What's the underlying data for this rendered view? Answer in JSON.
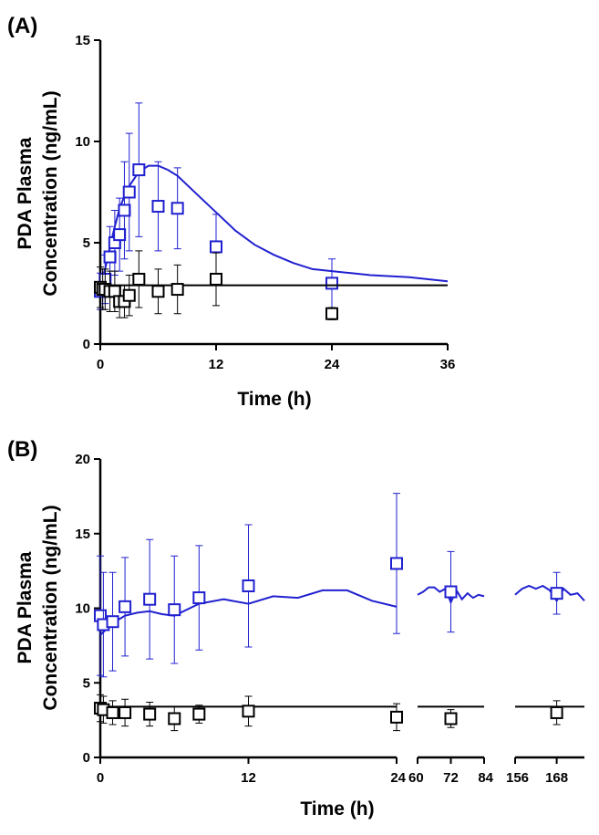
{
  "colors": {
    "blue": "#2020d0",
    "black": "#000000"
  },
  "chart_data": [
    {
      "type": "scatter",
      "panel_label": "(A)",
      "xlabel": "Time (h)",
      "ylabel_lines": [
        "PDA Plasma",
        "Concentration (ng/mL)"
      ],
      "xlim": [
        0,
        36
      ],
      "ylim": [
        0,
        15
      ],
      "x_ticks": [
        0,
        12,
        24,
        36
      ],
      "y_ticks": [
        0,
        5,
        10,
        15
      ],
      "series": [
        {
          "color": "blue",
          "x": [
            0,
            0.25,
            0.5,
            1,
            1.5,
            2,
            2.5,
            3,
            4,
            6,
            8,
            12,
            24
          ],
          "y": [
            2.6,
            2.7,
            3.2,
            4.3,
            5.0,
            5.4,
            6.6,
            7.5,
            8.6,
            6.8,
            6.7,
            4.8,
            3.0
          ],
          "err": [
            0.9,
            1.0,
            1.2,
            1.5,
            1.6,
            1.8,
            2.4,
            2.9,
            3.3,
            2.2,
            2.0,
            1.6,
            1.2
          ],
          "fit": {
            "x": [
              0,
              0.5,
              1,
              1.5,
              2,
              2.5,
              3,
              4,
              5,
              6,
              7,
              8,
              10,
              12,
              14,
              16,
              18,
              20,
              22,
              24,
              26,
              28,
              30,
              32,
              34,
              36
            ],
            "y": [
              2.7,
              3.7,
              4.8,
              5.8,
              6.7,
              7.3,
              7.8,
              8.5,
              8.8,
              8.8,
              8.6,
              8.3,
              7.4,
              6.5,
              5.6,
              4.9,
              4.4,
              4.0,
              3.7,
              3.6,
              3.5,
              3.4,
              3.35,
              3.3,
              3.2,
              3.1
            ]
          }
        },
        {
          "color": "black",
          "x": [
            0,
            0.25,
            0.5,
            1,
            1.5,
            2,
            2.5,
            3,
            4,
            6,
            8,
            12,
            24
          ],
          "y": [
            2.8,
            2.7,
            2.7,
            2.6,
            2.6,
            2.1,
            2.1,
            2.4,
            3.2,
            2.6,
            2.7,
            3.2,
            1.5
          ],
          "err": [
            1.0,
            1.0,
            1.0,
            1.0,
            1.0,
            0.8,
            0.8,
            1.0,
            1.4,
            1.1,
            1.2,
            1.3,
            0.3
          ],
          "fit": {
            "x": [
              0,
              36
            ],
            "y": [
              2.9,
              2.9
            ]
          }
        }
      ]
    },
    {
      "type": "scatter",
      "panel_label": "(B)",
      "xlabel": "Time (h)",
      "ylabel_lines": [
        "PDA Plasma",
        "Concentration  (ng/mL)"
      ],
      "ylim": [
        0,
        20
      ],
      "y_ticks": [
        0,
        5,
        10,
        15,
        20
      ],
      "x_segments": [
        {
          "xlim": [
            0,
            24
          ],
          "ticks": [
            0,
            12,
            24
          ],
          "tick_labels": [
            "0",
            "12",
            "24"
          ]
        },
        {
          "xlim": [
            60,
            84
          ],
          "ticks": [
            60,
            72,
            84
          ],
          "tick_labels": [
            "60",
            "72",
            "84"
          ]
        },
        {
          "xlim": [
            156,
            176
          ],
          "ticks": [
            156,
            168
          ],
          "tick_labels": [
            "156",
            "168"
          ]
        }
      ],
      "series": [
        {
          "color": "blue",
          "x": [
            0,
            0.25,
            1,
            2,
            4,
            6,
            8,
            12,
            24,
            72,
            168
          ],
          "y": [
            9.5,
            8.9,
            9.1,
            10.1,
            10.6,
            9.9,
            10.7,
            11.5,
            13.0,
            11.1,
            11.0
          ],
          "err": [
            4.0,
            3.5,
            3.3,
            3.3,
            4.0,
            3.6,
            3.5,
            4.1,
            4.7,
            2.7,
            1.4
          ],
          "fit_segments": [
            {
              "x": [
                0,
                1,
                2,
                3,
                4,
                5,
                6,
                7,
                8,
                10,
                12,
                14,
                16,
                18,
                20,
                22,
                24
              ],
              "y": [
                8.2,
                9.0,
                9.5,
                9.7,
                9.8,
                9.6,
                9.5,
                9.9,
                10.3,
                10.6,
                10.3,
                10.8,
                10.7,
                11.2,
                11.2,
                10.5,
                10.1
              ]
            },
            {
              "x": [
                60,
                62,
                64,
                66,
                68,
                70,
                72,
                74,
                76,
                78,
                80,
                82,
                84
              ],
              "y": [
                10.9,
                11.1,
                11.4,
                11.4,
                11.1,
                11.3,
                10.4,
                11.2,
                10.6,
                11.0,
                10.7,
                10.9,
                10.8
              ]
            },
            {
              "x": [
                156,
                158,
                160,
                162,
                164,
                166,
                168,
                170,
                172,
                174,
                176
              ],
              "y": [
                10.9,
                11.3,
                11.5,
                11.3,
                11.5,
                11.2,
                10.5,
                11.3,
                10.9,
                11.0,
                10.5
              ]
            }
          ]
        },
        {
          "color": "black",
          "x": [
            0,
            0.25,
            1,
            2,
            4,
            6,
            8,
            12,
            24,
            72,
            168
          ],
          "y": [
            3.3,
            3.2,
            3.0,
            3.0,
            2.9,
            2.6,
            2.9,
            3.1,
            2.7,
            2.6,
            3.0
          ],
          "err": [
            0.9,
            0.9,
            0.8,
            0.9,
            0.8,
            0.8,
            0.6,
            1.0,
            0.9,
            0.6,
            0.8
          ],
          "fit_segments": [
            {
              "x": [
                0,
                24
              ],
              "y": [
                3.4,
                3.4
              ]
            },
            {
              "x": [
                60,
                84
              ],
              "y": [
                3.4,
                3.4
              ]
            },
            {
              "x": [
                156,
                176
              ],
              "y": [
                3.4,
                3.4
              ]
            }
          ]
        }
      ]
    }
  ]
}
